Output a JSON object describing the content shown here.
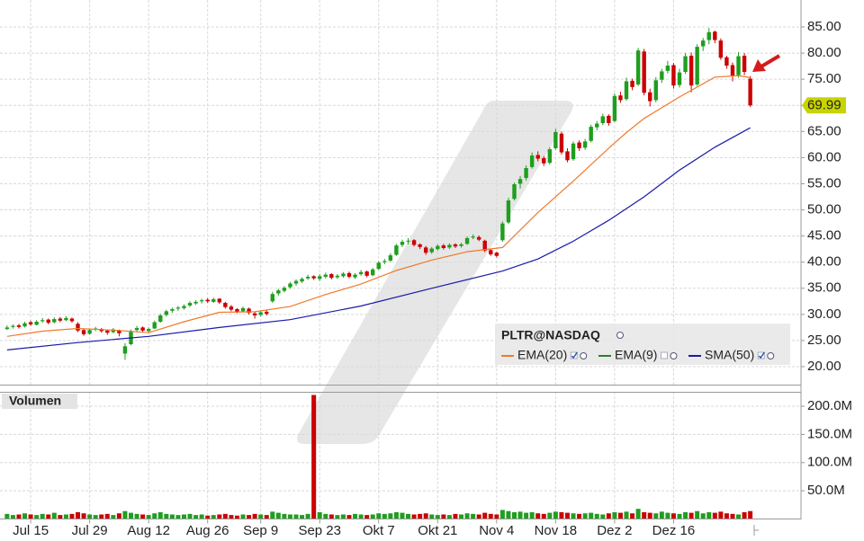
{
  "chart_data": {
    "type": "candlestick",
    "symbol": "PLTR@NASDAQ",
    "volume_title": "Volumen",
    "up_color": "#1f9e1f",
    "down_color": "#cc0000",
    "grid": true,
    "ylim": [
      16.56,
      90.16
    ],
    "yticks": [
      {
        "value": 20,
        "label": "20.00"
      },
      {
        "value": 25,
        "label": "25.00"
      },
      {
        "value": 30,
        "label": "30.00"
      },
      {
        "value": 35,
        "label": "35.00"
      },
      {
        "value": 40,
        "label": "40.00"
      },
      {
        "value": 45,
        "label": "45.00"
      },
      {
        "value": 50,
        "label": "50.00"
      },
      {
        "value": 55,
        "label": "55.00"
      },
      {
        "value": 60,
        "label": "60.00"
      },
      {
        "value": 65,
        "label": "65.00"
      },
      {
        "value": 70,
        "label": "70.00"
      },
      {
        "value": 75,
        "label": "75.00"
      },
      {
        "value": 80,
        "label": "80.00"
      },
      {
        "value": 85,
        "label": "85.00"
      }
    ],
    "y2lim": [
      0,
      225.6
    ],
    "y2ticks": [
      {
        "value": 50,
        "label": "50.0M"
      },
      {
        "value": 100,
        "label": "100.0M"
      },
      {
        "value": 150,
        "label": "150.0M"
      },
      {
        "value": 200,
        "label": "200.0M"
      }
    ],
    "xlim": [
      -1.2,
      134.6
    ],
    "xticks": [
      {
        "value": 4,
        "label": "Jul 15"
      },
      {
        "value": 14,
        "label": "Jul 29"
      },
      {
        "value": 24,
        "label": "Aug 12"
      },
      {
        "value": 34,
        "label": "Aug 26"
      },
      {
        "value": 43,
        "label": "Sep 9"
      },
      {
        "value": 53,
        "label": "Sep 23"
      },
      {
        "value": 63,
        "label": "Okt 7"
      },
      {
        "value": 73,
        "label": "Okt 21"
      },
      {
        "value": 83,
        "label": "Nov 4"
      },
      {
        "value": 93,
        "label": "Nov 18"
      },
      {
        "value": 103,
        "label": "Dez 2"
      },
      {
        "value": 113,
        "label": "Dez 16"
      }
    ],
    "last_price": 69.99,
    "last_price_color": "#c8d400",
    "candles": [
      [
        27.2,
        27.9,
        27.0,
        27.5
      ],
      [
        27.6,
        28.1,
        27.3,
        27.8
      ],
      [
        27.9,
        28.2,
        27.3,
        27.6
      ],
      [
        27.7,
        28.6,
        27.5,
        28.3
      ],
      [
        28.5,
        28.8,
        27.8,
        28.1
      ],
      [
        28.0,
        28.9,
        27.9,
        28.6
      ],
      [
        28.7,
        29.3,
        28.4,
        28.9
      ],
      [
        29.0,
        29.2,
        28.1,
        28.4
      ],
      [
        28.5,
        29.4,
        28.3,
        29.1
      ],
      [
        29.2,
        29.5,
        28.5,
        28.8
      ],
      [
        28.9,
        29.7,
        28.7,
        29.3
      ],
      [
        29.2,
        29.4,
        28.4,
        28.7
      ],
      [
        28.2,
        28.5,
        26.6,
        26.9
      ],
      [
        27.0,
        27.3,
        25.9,
        26.2
      ],
      [
        26.3,
        27.3,
        26.1,
        27.0
      ],
      [
        27.1,
        27.6,
        26.8,
        27.3
      ],
      [
        27.2,
        27.4,
        26.5,
        26.8
      ],
      [
        26.9,
        27.0,
        26.1,
        26.5
      ],
      [
        26.6,
        27.4,
        26.4,
        27.1
      ],
      [
        26.9,
        27.1,
        25.8,
        26.4
      ],
      [
        22.5,
        24.5,
        21.3,
        23.9
      ],
      [
        24.3,
        27.1,
        24.1,
        26.8
      ],
      [
        27.0,
        27.8,
        26.7,
        27.4
      ],
      [
        27.5,
        27.7,
        26.6,
        26.9
      ],
      [
        26.8,
        27.5,
        26.5,
        27.2
      ],
      [
        27.3,
        28.8,
        27.2,
        28.5
      ],
      [
        28.6,
        30.1,
        28.4,
        29.8
      ],
      [
        29.9,
        30.9,
        29.6,
        30.6
      ],
      [
        30.7,
        31.3,
        30.3,
        31.0
      ],
      [
        31.1,
        31.6,
        30.7,
        31.3
      ],
      [
        31.2,
        31.9,
        30.9,
        31.6
      ],
      [
        31.7,
        32.5,
        31.4,
        32.2
      ],
      [
        32.1,
        32.7,
        31.8,
        32.4
      ],
      [
        32.5,
        33.0,
        32.1,
        32.7
      ],
      [
        32.8,
        33.1,
        32.2,
        32.5
      ],
      [
        32.4,
        33.2,
        32.2,
        32.9
      ],
      [
        33.0,
        33.1,
        32.0,
        32.3
      ],
      [
        32.2,
        32.4,
        31.1,
        31.4
      ],
      [
        31.5,
        31.8,
        30.6,
        30.9
      ],
      [
        31.0,
        31.2,
        30.2,
        30.5
      ],
      [
        30.6,
        31.5,
        30.4,
        31.2
      ],
      [
        31.1,
        31.3,
        30.0,
        30.3
      ],
      [
        30.2,
        30.5,
        29.2,
        29.8
      ],
      [
        29.9,
        30.7,
        29.6,
        30.4
      ],
      [
        30.5,
        30.9,
        29.8,
        30.1
      ],
      [
        32.5,
        34.3,
        32.2,
        33.9
      ],
      [
        34.0,
        34.9,
        33.6,
        34.6
      ],
      [
        34.5,
        35.4,
        34.2,
        35.1
      ],
      [
        35.2,
        36.2,
        34.9,
        35.9
      ],
      [
        35.9,
        36.7,
        35.5,
        36.4
      ],
      [
        36.3,
        37.1,
        36.0,
        36.8
      ],
      [
        36.9,
        37.6,
        36.6,
        37.2
      ],
      [
        37.3,
        37.5,
        36.6,
        36.9
      ],
      [
        36.8,
        37.7,
        36.4,
        37.3
      ],
      [
        37.2,
        38.0,
        36.9,
        37.6
      ],
      [
        37.7,
        37.9,
        36.7,
        37.0
      ],
      [
        37.1,
        37.7,
        36.8,
        37.4
      ],
      [
        37.3,
        38.1,
        37.0,
        37.8
      ],
      [
        37.9,
        38.2,
        36.9,
        37.2
      ],
      [
        37.1,
        37.9,
        36.8,
        37.6
      ],
      [
        37.7,
        38.5,
        37.4,
        38.1
      ],
      [
        38.2,
        38.4,
        37.1,
        37.4
      ],
      [
        37.5,
        38.9,
        37.3,
        38.6
      ],
      [
        38.7,
        40.2,
        38.5,
        39.9
      ],
      [
        40.0,
        40.6,
        39.6,
        40.2
      ],
      [
        40.3,
        41.7,
        40.0,
        41.3
      ],
      [
        41.4,
        43.5,
        41.2,
        43.2
      ],
      [
        43.3,
        44.3,
        42.9,
        43.9
      ],
      [
        44.0,
        44.6,
        43.4,
        44.1
      ],
      [
        44.2,
        44.4,
        43.0,
        43.3
      ],
      [
        43.4,
        43.6,
        42.5,
        42.9
      ],
      [
        42.8,
        43.1,
        41.4,
        41.8
      ],
      [
        41.9,
        42.9,
        41.6,
        42.6
      ],
      [
        42.5,
        43.4,
        42.2,
        43.1
      ],
      [
        43.2,
        43.5,
        42.4,
        42.7
      ],
      [
        42.8,
        43.6,
        42.5,
        43.3
      ],
      [
        43.4,
        43.6,
        42.7,
        43.0
      ],
      [
        43.1,
        43.7,
        42.8,
        43.4
      ],
      [
        43.5,
        44.9,
        43.3,
        44.6
      ],
      [
        44.7,
        45.3,
        44.4,
        44.9
      ],
      [
        44.8,
        45.1,
        44.0,
        44.3
      ],
      [
        44.1,
        44.3,
        41.9,
        42.2
      ],
      [
        42.3,
        42.6,
        41.2,
        41.5
      ],
      [
        41.8,
        42.0,
        40.9,
        41.2
      ],
      [
        44.2,
        47.8,
        43.9,
        47.4
      ],
      [
        47.6,
        52.3,
        47.3,
        51.8
      ],
      [
        52.1,
        55.2,
        51.8,
        54.9
      ],
      [
        55.0,
        56.5,
        54.1,
        55.9
      ],
      [
        56.1,
        58.5,
        55.6,
        58.0
      ],
      [
        58.2,
        61.0,
        57.9,
        60.4
      ],
      [
        60.5,
        61.2,
        59.3,
        59.8
      ],
      [
        59.9,
        60.3,
        58.4,
        58.9
      ],
      [
        59.0,
        62.0,
        58.7,
        61.6
      ],
      [
        61.8,
        65.5,
        61.5,
        64.9
      ],
      [
        64.6,
        65.0,
        60.6,
        61.0
      ],
      [
        61.2,
        61.8,
        59.1,
        59.5
      ],
      [
        59.7,
        63.1,
        59.4,
        62.7
      ],
      [
        62.9,
        63.3,
        61.3,
        61.8
      ],
      [
        61.9,
        63.6,
        61.5,
        63.1
      ],
      [
        63.2,
        66.3,
        62.9,
        65.9
      ],
      [
        65.8,
        67.0,
        65.2,
        66.5
      ],
      [
        66.6,
        68.4,
        66.2,
        67.9
      ],
      [
        68.0,
        68.3,
        66.1,
        66.6
      ],
      [
        67.0,
        72.3,
        66.8,
        71.8
      ],
      [
        71.9,
        72.6,
        70.5,
        71.0
      ],
      [
        71.2,
        75.3,
        70.9,
        74.6
      ],
      [
        74.7,
        75.1,
        72.9,
        73.5
      ],
      [
        74.0,
        81.0,
        73.7,
        80.5
      ],
      [
        80.3,
        80.8,
        71.9,
        72.4
      ],
      [
        72.5,
        73.2,
        69.8,
        70.8
      ],
      [
        71.0,
        75.4,
        70.6,
        74.8
      ],
      [
        74.9,
        77.0,
        74.3,
        76.5
      ],
      [
        76.6,
        78.5,
        76.1,
        77.6
      ],
      [
        77.7,
        78.1,
        73.2,
        73.8
      ],
      [
        73.9,
        77.0,
        73.4,
        76.3
      ],
      [
        76.4,
        80.0,
        76.0,
        79.4
      ],
      [
        79.5,
        80.1,
        72.5,
        73.8
      ],
      [
        74.0,
        81.7,
        73.7,
        81.2
      ],
      [
        81.3,
        82.9,
        80.4,
        82.4
      ],
      [
        82.5,
        84.8,
        81.7,
        84.0
      ],
      [
        84.1,
        84.3,
        81.9,
        82.5
      ],
      [
        82.4,
        82.8,
        78.7,
        79.1
      ],
      [
        79.2,
        79.5,
        77.0,
        77.6
      ],
      [
        77.7,
        78.2,
        74.6,
        75.7
      ],
      [
        75.8,
        80.2,
        75.3,
        79.4
      ],
      [
        79.5,
        80.0,
        75.8,
        76.4
      ],
      [
        75.1,
        75.6,
        69.7,
        69.99
      ]
    ],
    "volumes": [
      9,
      7,
      8,
      10,
      8,
      7,
      9,
      8,
      11,
      7,
      8,
      9,
      12,
      10,
      8,
      7,
      8,
      9,
      7,
      10,
      14,
      11,
      9,
      8,
      7,
      10,
      12,
      9,
      8,
      7,
      8,
      9,
      7,
      8,
      6,
      7,
      8,
      9,
      7,
      6,
      8,
      7,
      9,
      8,
      7,
      13,
      11,
      9,
      8,
      8,
      7,
      9,
      220,
      12,
      9,
      8,
      7,
      8,
      7,
      9,
      8,
      7,
      8,
      10,
      9,
      10,
      12,
      11,
      9,
      8,
      9,
      10,
      8,
      7,
      8,
      7,
      9,
      8,
      10,
      9,
      8,
      11,
      9,
      8,
      16,
      14,
      12,
      13,
      11,
      12,
      10,
      9,
      11,
      13,
      12,
      11,
      10,
      9,
      10,
      11,
      9,
      8,
      10,
      12,
      11,
      13,
      10,
      18,
      12,
      11,
      10,
      13,
      11,
      10,
      9,
      12,
      11,
      14,
      10,
      12,
      11,
      13,
      10,
      9,
      8,
      12,
      14
    ],
    "overlays": [
      {
        "name": "EMA(20)",
        "color": "#f07a2a",
        "visible": true,
        "x": [
          0,
          6,
          12,
          18,
          24,
          30,
          36,
          42,
          48,
          54,
          60,
          66,
          72,
          78,
          84,
          90,
          96,
          102,
          105,
          108,
          114,
          120,
          124,
          126
        ],
        "values": [
          25.8,
          26.8,
          27.3,
          27.0,
          26.5,
          28.6,
          30.4,
          30.5,
          31.5,
          33.8,
          35.8,
          38.4,
          40.4,
          42.0,
          42.8,
          49.5,
          55.5,
          61.8,
          64.8,
          67.5,
          71.6,
          75.4,
          75.7,
          75.3
        ]
      },
      {
        "name": "EMA(9)",
        "color": "#2e7d2e",
        "visible": false
      },
      {
        "name": "SMA(50)",
        "color": "#1a1aa8",
        "visible": true,
        "x": [
          0,
          12,
          24,
          36,
          48,
          60,
          72,
          84,
          90,
          96,
          102,
          108,
          114,
          120,
          126
        ],
        "values": [
          23.2,
          24.6,
          25.8,
          27.5,
          29.0,
          31.6,
          35.0,
          38.3,
          40.6,
          44.0,
          48.0,
          52.5,
          57.6,
          62.0,
          65.7
        ]
      }
    ]
  }
}
